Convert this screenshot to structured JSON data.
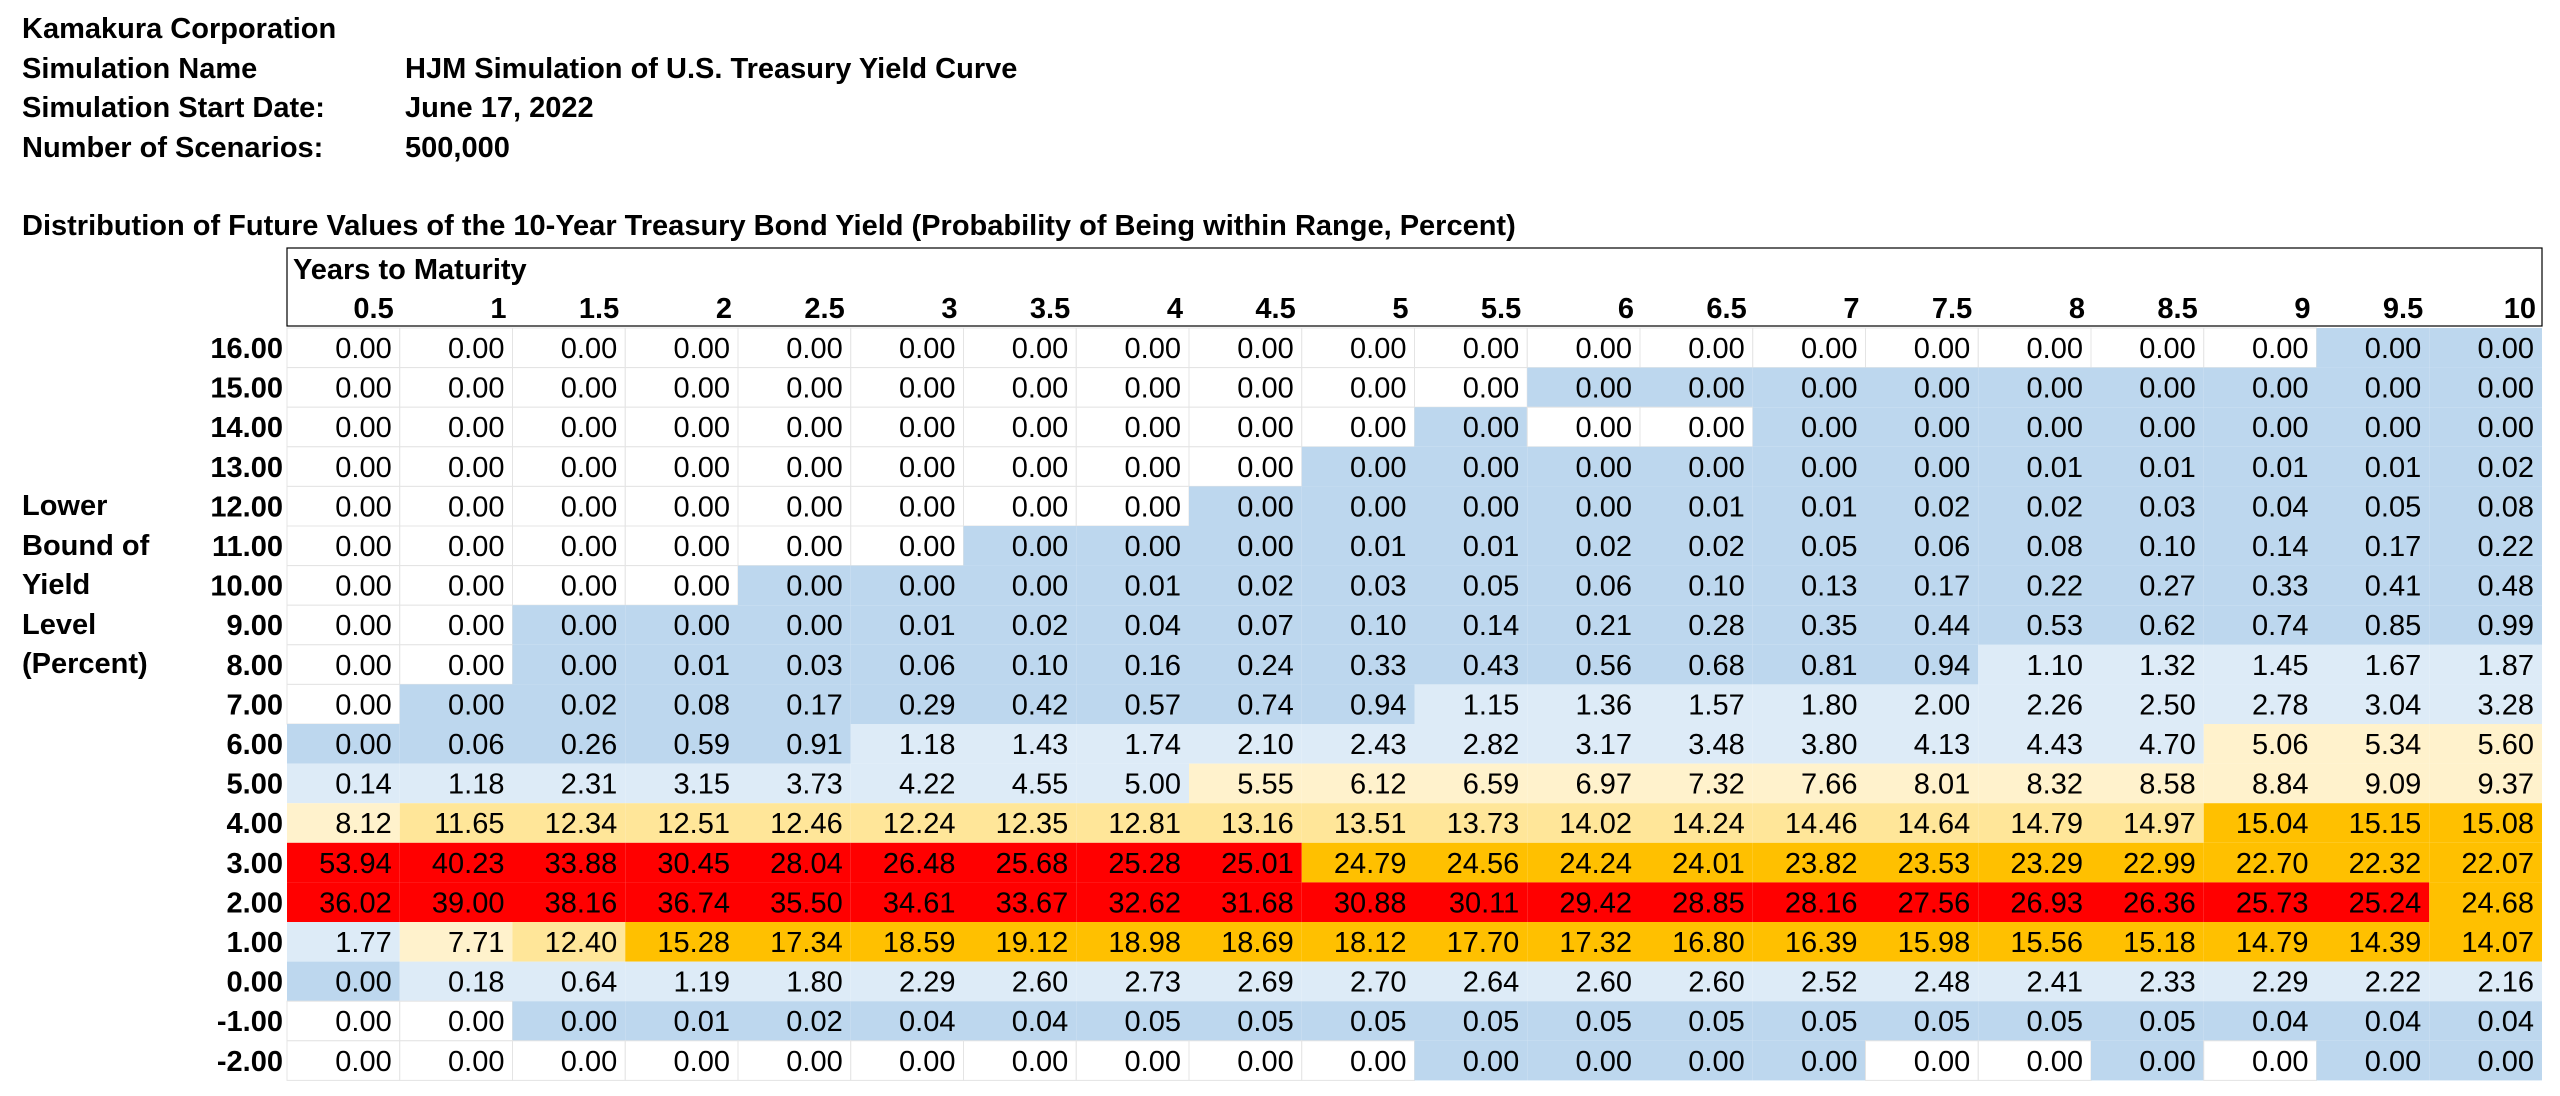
{
  "header": {
    "company": "Kamakura Corporation",
    "rows": [
      {
        "label": "Simulation Name",
        "value": "HJM Simulation of U.S. Treasury Yield Curve"
      },
      {
        "label": "Simulation Start Date:",
        "value": "June 17, 2022"
      },
      {
        "label": "Number of Scenarios:",
        "value": "500,000"
      }
    ]
  },
  "colors": {
    "red": "#ff0000",
    "orange": "#ffc000",
    "yellow": "#ffe699",
    "light_yellow": "#fff2cc",
    "blue": "#bdd7ee",
    "light_blue": "#ddebf7",
    "white": "#ffffff"
  },
  "chart_data": {
    "type": "heatmap",
    "title": "Distribution of Future Values of the 10-Year Treasury Bond Yield (Probability of Being within Range, Percent)",
    "xlabel": "Years to Maturity",
    "ylabel": [
      "Lower",
      "Bound of",
      "Yield",
      "Level",
      "(Percent)"
    ],
    "columns": [
      "0.5",
      "1",
      "1.5",
      "2",
      "2.5",
      "3",
      "3.5",
      "4",
      "4.5",
      "5",
      "5.5",
      "6",
      "6.5",
      "7",
      "7.5",
      "8",
      "8.5",
      "9",
      "9.5",
      "10"
    ],
    "rows": [
      "16.00",
      "15.00",
      "14.00",
      "13.00",
      "12.00",
      "11.00",
      "10.00",
      "9.00",
      "8.00",
      "7.00",
      "6.00",
      "5.00",
      "4.00",
      "3.00",
      "2.00",
      "1.00",
      "0.00",
      "-1.00",
      "-2.00"
    ],
    "values": [
      [
        "0.00",
        "0.00",
        "0.00",
        "0.00",
        "0.00",
        "0.00",
        "0.00",
        "0.00",
        "0.00",
        "0.00",
        "0.00",
        "0.00",
        "0.00",
        "0.00",
        "0.00",
        "0.00",
        "0.00",
        "0.00",
        "0.00",
        "0.00"
      ],
      [
        "0.00",
        "0.00",
        "0.00",
        "0.00",
        "0.00",
        "0.00",
        "0.00",
        "0.00",
        "0.00",
        "0.00",
        "0.00",
        "0.00",
        "0.00",
        "0.00",
        "0.00",
        "0.00",
        "0.00",
        "0.00",
        "0.00",
        "0.00"
      ],
      [
        "0.00",
        "0.00",
        "0.00",
        "0.00",
        "0.00",
        "0.00",
        "0.00",
        "0.00",
        "0.00",
        "0.00",
        "0.00",
        "0.00",
        "0.00",
        "0.00",
        "0.00",
        "0.00",
        "0.00",
        "0.00",
        "0.00",
        "0.00"
      ],
      [
        "0.00",
        "0.00",
        "0.00",
        "0.00",
        "0.00",
        "0.00",
        "0.00",
        "0.00",
        "0.00",
        "0.00",
        "0.00",
        "0.00",
        "0.00",
        "0.00",
        "0.00",
        "0.01",
        "0.01",
        "0.01",
        "0.01",
        "0.02"
      ],
      [
        "0.00",
        "0.00",
        "0.00",
        "0.00",
        "0.00",
        "0.00",
        "0.00",
        "0.00",
        "0.00",
        "0.00",
        "0.00",
        "0.00",
        "0.01",
        "0.01",
        "0.02",
        "0.02",
        "0.03",
        "0.04",
        "0.05",
        "0.08"
      ],
      [
        "0.00",
        "0.00",
        "0.00",
        "0.00",
        "0.00",
        "0.00",
        "0.00",
        "0.00",
        "0.00",
        "0.01",
        "0.01",
        "0.02",
        "0.02",
        "0.05",
        "0.06",
        "0.08",
        "0.10",
        "0.14",
        "0.17",
        "0.22"
      ],
      [
        "0.00",
        "0.00",
        "0.00",
        "0.00",
        "0.00",
        "0.00",
        "0.00",
        "0.01",
        "0.02",
        "0.03",
        "0.05",
        "0.06",
        "0.10",
        "0.13",
        "0.17",
        "0.22",
        "0.27",
        "0.33",
        "0.41",
        "0.48"
      ],
      [
        "0.00",
        "0.00",
        "0.00",
        "0.00",
        "0.00",
        "0.01",
        "0.02",
        "0.04",
        "0.07",
        "0.10",
        "0.14",
        "0.21",
        "0.28",
        "0.35",
        "0.44",
        "0.53",
        "0.62",
        "0.74",
        "0.85",
        "0.99"
      ],
      [
        "0.00",
        "0.00",
        "0.00",
        "0.01",
        "0.03",
        "0.06",
        "0.10",
        "0.16",
        "0.24",
        "0.33",
        "0.43",
        "0.56",
        "0.68",
        "0.81",
        "0.94",
        "1.10",
        "1.32",
        "1.45",
        "1.67",
        "1.87"
      ],
      [
        "0.00",
        "0.00",
        "0.02",
        "0.08",
        "0.17",
        "0.29",
        "0.42",
        "0.57",
        "0.74",
        "0.94",
        "1.15",
        "1.36",
        "1.57",
        "1.80",
        "2.00",
        "2.26",
        "2.50",
        "2.78",
        "3.04",
        "3.28"
      ],
      [
        "0.00",
        "0.06",
        "0.26",
        "0.59",
        "0.91",
        "1.18",
        "1.43",
        "1.74",
        "2.10",
        "2.43",
        "2.82",
        "3.17",
        "3.48",
        "3.80",
        "4.13",
        "4.43",
        "4.70",
        "5.06",
        "5.34",
        "5.60"
      ],
      [
        "0.14",
        "1.18",
        "2.31",
        "3.15",
        "3.73",
        "4.22",
        "4.55",
        "5.00",
        "5.55",
        "6.12",
        "6.59",
        "6.97",
        "7.32",
        "7.66",
        "8.01",
        "8.32",
        "8.58",
        "8.84",
        "9.09",
        "9.37"
      ],
      [
        "8.12",
        "11.65",
        "12.34",
        "12.51",
        "12.46",
        "12.24",
        "12.35",
        "12.81",
        "13.16",
        "13.51",
        "13.73",
        "14.02",
        "14.24",
        "14.46",
        "14.64",
        "14.79",
        "14.97",
        "15.04",
        "15.15",
        "15.08"
      ],
      [
        "53.94",
        "40.23",
        "33.88",
        "30.45",
        "28.04",
        "26.48",
        "25.68",
        "25.28",
        "25.01",
        "24.79",
        "24.56",
        "24.24",
        "24.01",
        "23.82",
        "23.53",
        "23.29",
        "22.99",
        "22.70",
        "22.32",
        "22.07"
      ],
      [
        "36.02",
        "39.00",
        "38.16",
        "36.74",
        "35.50",
        "34.61",
        "33.67",
        "32.62",
        "31.68",
        "30.88",
        "30.11",
        "29.42",
        "28.85",
        "28.16",
        "27.56",
        "26.93",
        "26.36",
        "25.73",
        "25.24",
        "24.68"
      ],
      [
        "1.77",
        "7.71",
        "12.40",
        "15.28",
        "17.34",
        "18.59",
        "19.12",
        "18.98",
        "18.69",
        "18.12",
        "17.70",
        "17.32",
        "16.80",
        "16.39",
        "15.98",
        "15.56",
        "15.18",
        "14.79",
        "14.39",
        "14.07"
      ],
      [
        "0.00",
        "0.18",
        "0.64",
        "1.19",
        "1.80",
        "2.29",
        "2.60",
        "2.73",
        "2.69",
        "2.70",
        "2.64",
        "2.60",
        "2.60",
        "2.52",
        "2.48",
        "2.41",
        "2.33",
        "2.29",
        "2.22",
        "2.16"
      ],
      [
        "0.00",
        "0.00",
        "0.00",
        "0.01",
        "0.02",
        "0.04",
        "0.04",
        "0.05",
        "0.05",
        "0.05",
        "0.05",
        "0.05",
        "0.05",
        "0.05",
        "0.05",
        "0.05",
        "0.05",
        "0.04",
        "0.04",
        "0.04"
      ],
      [
        "0.00",
        "0.00",
        "0.00",
        "0.00",
        "0.00",
        "0.00",
        "0.00",
        "0.00",
        "0.00",
        "0.00",
        "0.00",
        "0.00",
        "0.00",
        "0.00",
        "0.00",
        "0.00",
        "0.00",
        "0.00",
        "0.00",
        "0.00"
      ]
    ],
    "fill": [
      [
        "W",
        "W",
        "W",
        "W",
        "W",
        "W",
        "W",
        "W",
        "W",
        "W",
        "W",
        "W",
        "W",
        "W",
        "W",
        "W",
        "W",
        "W",
        "B",
        "B"
      ],
      [
        "W",
        "W",
        "W",
        "W",
        "W",
        "W",
        "W",
        "W",
        "W",
        "W",
        "W",
        "B",
        "B",
        "B",
        "B",
        "B",
        "B",
        "B",
        "B",
        "B"
      ],
      [
        "W",
        "W",
        "W",
        "W",
        "W",
        "W",
        "W",
        "W",
        "W",
        "W",
        "B",
        "W",
        "W",
        "B",
        "B",
        "B",
        "B",
        "B",
        "B",
        "B"
      ],
      [
        "W",
        "W",
        "W",
        "W",
        "W",
        "W",
        "W",
        "W",
        "W",
        "B",
        "B",
        "B",
        "B",
        "B",
        "B",
        "B",
        "B",
        "B",
        "B",
        "B"
      ],
      [
        "W",
        "W",
        "W",
        "W",
        "W",
        "W",
        "W",
        "W",
        "B",
        "B",
        "B",
        "B",
        "B",
        "B",
        "B",
        "B",
        "B",
        "B",
        "B",
        "B"
      ],
      [
        "W",
        "W",
        "W",
        "W",
        "W",
        "W",
        "B",
        "B",
        "B",
        "B",
        "B",
        "B",
        "B",
        "B",
        "B",
        "B",
        "B",
        "B",
        "B",
        "B"
      ],
      [
        "W",
        "W",
        "W",
        "W",
        "B",
        "B",
        "B",
        "B",
        "B",
        "B",
        "B",
        "B",
        "B",
        "B",
        "B",
        "B",
        "B",
        "B",
        "B",
        "B"
      ],
      [
        "W",
        "W",
        "B",
        "B",
        "B",
        "B",
        "B",
        "B",
        "B",
        "B",
        "B",
        "B",
        "B",
        "B",
        "B",
        "B",
        "B",
        "B",
        "B",
        "B"
      ],
      [
        "W",
        "W",
        "B",
        "B",
        "B",
        "B",
        "B",
        "B",
        "B",
        "B",
        "B",
        "B",
        "B",
        "B",
        "B",
        "L",
        "L",
        "L",
        "L",
        "L"
      ],
      [
        "W",
        "B",
        "B",
        "B",
        "B",
        "B",
        "B",
        "B",
        "B",
        "B",
        "L",
        "L",
        "L",
        "L",
        "L",
        "L",
        "L",
        "L",
        "L",
        "L"
      ],
      [
        "B",
        "B",
        "B",
        "B",
        "B",
        "L",
        "L",
        "L",
        "L",
        "L",
        "L",
        "L",
        "L",
        "L",
        "L",
        "L",
        "L",
        "LY",
        "LY",
        "LY"
      ],
      [
        "L",
        "L",
        "L",
        "L",
        "L",
        "L",
        "L",
        "L",
        "LY",
        "LY",
        "LY",
        "LY",
        "LY",
        "LY",
        "LY",
        "LY",
        "LY",
        "LY",
        "LY",
        "LY"
      ],
      [
        "LY",
        "Y",
        "Y",
        "Y",
        "Y",
        "Y",
        "Y",
        "Y",
        "Y",
        "Y",
        "Y",
        "Y",
        "Y",
        "Y",
        "Y",
        "Y",
        "Y",
        "O",
        "O",
        "O"
      ],
      [
        "R",
        "R",
        "R",
        "R",
        "R",
        "R",
        "R",
        "R",
        "R",
        "O",
        "O",
        "O",
        "O",
        "O",
        "O",
        "O",
        "O",
        "O",
        "O",
        "O"
      ],
      [
        "R",
        "R",
        "R",
        "R",
        "R",
        "R",
        "R",
        "R",
        "R",
        "R",
        "R",
        "R",
        "R",
        "R",
        "R",
        "R",
        "R",
        "R",
        "R",
        "O"
      ],
      [
        "L",
        "LY",
        "Y",
        "O",
        "O",
        "O",
        "O",
        "O",
        "O",
        "O",
        "O",
        "O",
        "O",
        "O",
        "O",
        "O",
        "O",
        "O",
        "O",
        "O"
      ],
      [
        "B",
        "L",
        "L",
        "L",
        "L",
        "L",
        "L",
        "L",
        "L",
        "L",
        "L",
        "L",
        "L",
        "L",
        "L",
        "L",
        "L",
        "L",
        "L",
        "L"
      ],
      [
        "W",
        "W",
        "B",
        "B",
        "B",
        "B",
        "B",
        "B",
        "B",
        "B",
        "B",
        "B",
        "B",
        "B",
        "B",
        "B",
        "B",
        "B",
        "B",
        "B"
      ],
      [
        "W",
        "W",
        "W",
        "W",
        "W",
        "W",
        "W",
        "W",
        "W",
        "W",
        "B",
        "B",
        "B",
        "B",
        "W",
        "W",
        "B",
        "W",
        "B",
        "B"
      ]
    ]
  }
}
